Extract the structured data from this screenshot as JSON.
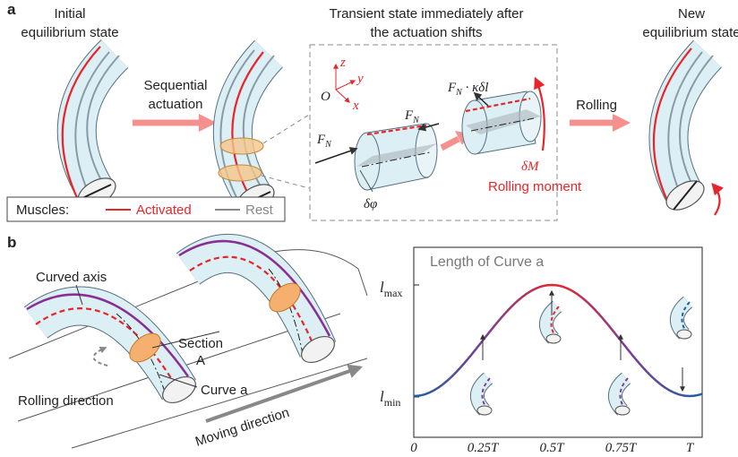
{
  "panel_a": {
    "label": "a",
    "initial_title": [
      "Initial",
      "equilibrium state"
    ],
    "actuation_label": [
      "Sequential",
      "actuation"
    ],
    "transient_title": [
      "Transient state immediately after",
      "the actuation shifts"
    ],
    "rolling_label": "Rolling",
    "new_title": [
      "New",
      "equilibrium state"
    ],
    "axes": {
      "z": "z",
      "y": "y",
      "x": "x",
      "origin": "O"
    },
    "force_label": {
      "symbol": "F",
      "sub": "N"
    },
    "force_term": " · κδl",
    "angle_label": "δφ",
    "moment_label": "δM",
    "rolling_moment": "Rolling moment",
    "legend": {
      "title": "Muscles:",
      "activated": "Activated",
      "rest": "Rest"
    }
  },
  "panel_b": {
    "label": "b",
    "curved_axis": "Curved axis",
    "section": [
      "Section",
      "A"
    ],
    "curve": "Curve a",
    "rolling_direction": "Rolling direction",
    "moving_direction": "Moving direction",
    "plot": {
      "title": "Length of Curve a",
      "y_max": {
        "symbol": "l",
        "sub": "max"
      },
      "y_min": {
        "symbol": "l",
        "sub": "min"
      },
      "x_ticks": [
        "0",
        "0.25T",
        "0.5T",
        "0.75T",
        "T"
      ]
    }
  }
}
